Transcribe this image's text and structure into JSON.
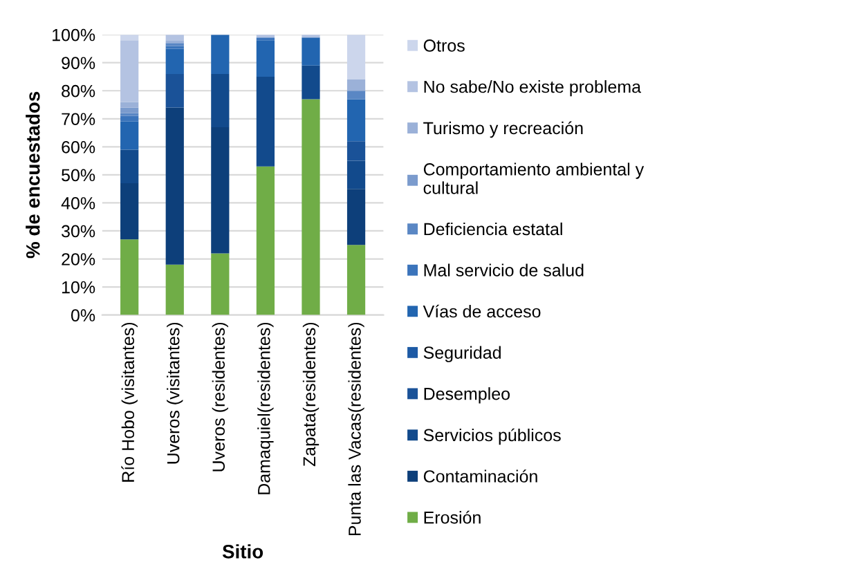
{
  "chart_data": {
    "type": "bar",
    "stacked": true,
    "xlabel": "Sitio",
    "ylabel": "% de encuestados",
    "categories": [
      "Río Hobo (visitantes)",
      "Uveros (visitantes)",
      "Uveros (residentes)",
      "Damaquiel(residentes)",
      "Zapata(residentes)",
      "Punta las Vacas(residentes)"
    ],
    "series": [
      {
        "name": "Erosión",
        "color": "#70ad47",
        "values": [
          27,
          18,
          22,
          53,
          77,
          25
        ]
      },
      {
        "name": "Contaminación",
        "color": "#0d3f7a",
        "values": [
          20,
          56,
          45,
          0,
          0,
          20
        ]
      },
      {
        "name": "Servicios públicos",
        "color": "#124a8c",
        "values": [
          12,
          0,
          19,
          32,
          12,
          10
        ]
      },
      {
        "name": "Desempleo",
        "color": "#1a5298",
        "values": [
          0,
          12,
          0,
          0,
          0,
          7
        ]
      },
      {
        "name": "Seguridad",
        "color": "#1d5aa5",
        "values": [
          0,
          0,
          0,
          0,
          0,
          0
        ]
      },
      {
        "name": "Vías de acceso",
        "color": "#2265b0",
        "values": [
          10,
          9,
          14,
          13,
          10,
          15
        ]
      },
      {
        "name": "Mal servicio de salud",
        "color": "#3b74bb",
        "values": [
          2,
          1,
          0,
          1,
          0,
          0
        ]
      },
      {
        "name": "Deficiencia estatal",
        "color": "#5a87c4",
        "values": [
          1,
          1,
          0,
          0,
          0,
          3
        ]
      },
      {
        "name": "Comportamiento ambiental y\ncultural",
        "color": "#7b9bcd",
        "values": [
          2,
          0,
          0,
          0,
          0,
          0
        ]
      },
      {
        "name": "Turismo y recreación",
        "color": "#9bb1d8",
        "values": [
          2,
          1,
          0,
          0,
          0,
          4
        ]
      },
      {
        "name": "No sabe/No existe problema",
        "color": "#b4c3e2",
        "values": [
          22,
          2,
          0,
          1,
          1,
          0
        ]
      },
      {
        "name": "Otros",
        "color": "#ccd6ec",
        "values": [
          2,
          0,
          0,
          0,
          0,
          16
        ]
      }
    ],
    "ylim": [
      0,
      100
    ],
    "yticks": [
      {
        "value": 0,
        "label": "0%"
      },
      {
        "value": 10,
        "label": "10%"
      },
      {
        "value": 20,
        "label": "20%"
      },
      {
        "value": 30,
        "label": "30%"
      },
      {
        "value": 40,
        "label": "40%"
      },
      {
        "value": 50,
        "label": "50%"
      },
      {
        "value": 60,
        "label": "60%"
      },
      {
        "value": 70,
        "label": "70%"
      },
      {
        "value": 80,
        "label": "80%"
      },
      {
        "value": 90,
        "label": "90%"
      },
      {
        "value": 100,
        "label": "100%"
      }
    ],
    "grid": "y",
    "legend": "right"
  }
}
